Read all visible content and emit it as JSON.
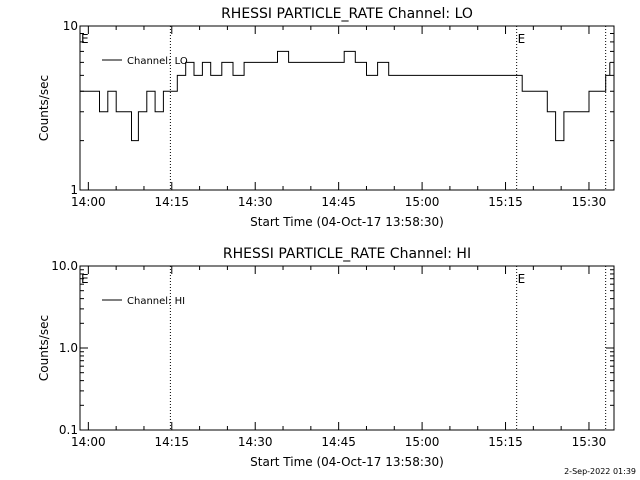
{
  "chart_data": [
    {
      "type": "line",
      "title": "RHESSI PARTICLE_RATE Channel: LO",
      "xlabel": "Start Time (04-Oct-17 13:58:30)",
      "ylabel": "Counts/sec",
      "yscale": "log",
      "ylim": [
        1,
        10
      ],
      "xlim": [
        "13:58:30",
        "15:34:30"
      ],
      "x_ticks": [
        "14:00",
        "14:15",
        "14:30",
        "14:45",
        "15:00",
        "15:15",
        "15:30"
      ],
      "y_ticks": [
        "1",
        "10"
      ],
      "legend": {
        "position": "top-left",
        "label": "Channel: LO"
      },
      "markers": [
        {
          "label": "E",
          "time": "13:58:30"
        },
        {
          "label": "",
          "time": "14:14:45"
        },
        {
          "label": "E",
          "time": "15:17:00"
        },
        {
          "label": "",
          "time": "15:33:00"
        }
      ],
      "series": [
        {
          "name": "Channel: LO",
          "times": [
            "13:58:30",
            "14:01:00",
            "14:02:00",
            "14:03:30",
            "14:05:00",
            "14:07:00",
            "14:07:45",
            "14:09:00",
            "14:10:30",
            "14:12:00",
            "14:13:30",
            "14:14:45",
            "14:16:00",
            "14:17:30",
            "14:19:00",
            "14:20:30",
            "14:22:00",
            "14:24:00",
            "14:26:00",
            "14:28:00",
            "14:30:00",
            "14:32:00",
            "14:34:00",
            "14:36:00",
            "14:38:00",
            "14:40:00",
            "14:42:00",
            "14:44:00",
            "14:46:00",
            "14:48:00",
            "14:50:00",
            "14:52:00",
            "14:54:00",
            "14:56:00",
            "14:58:00",
            "15:00:00",
            "15:02:00",
            "15:04:00",
            "15:06:00",
            "15:08:00",
            "15:10:00",
            "15:12:00",
            "15:14:00",
            "15:16:00",
            "15:18:00",
            "15:19:30",
            "15:21:00",
            "15:22:30",
            "15:24:00",
            "15:25:30",
            "15:27:00",
            "15:28:30",
            "15:30:00",
            "15:31:30",
            "15:33:00",
            "15:33:45"
          ],
          "values": [
            4,
            4,
            3,
            4,
            3,
            3,
            2,
            3,
            4,
            3,
            4,
            4,
            5,
            6,
            5,
            6,
            5,
            6,
            5,
            6,
            6,
            6,
            7,
            6,
            6,
            6,
            6,
            6,
            7,
            6,
            5,
            6,
            5,
            5,
            5,
            5,
            5,
            5,
            5,
            5,
            5,
            5,
            5,
            5,
            4,
            4,
            4,
            3,
            2,
            3,
            3,
            3,
            4,
            4,
            5,
            6
          ]
        }
      ]
    },
    {
      "type": "line",
      "title": "RHESSI PARTICLE_RATE Channel: HI",
      "xlabel": "Start Time (04-Oct-17 13:58:30)",
      "ylabel": "Counts/sec",
      "yscale": "log",
      "ylim": [
        0.1,
        10
      ],
      "xlim": [
        "13:58:30",
        "15:34:30"
      ],
      "x_ticks": [
        "14:00",
        "14:15",
        "14:30",
        "14:45",
        "15:00",
        "15:15",
        "15:30"
      ],
      "y_ticks": [
        "0.1",
        "1.0",
        "10.0"
      ],
      "legend": {
        "position": "top-left",
        "label": "Channel: HI"
      },
      "markers": [
        {
          "label": "E",
          "time": "13:58:30"
        },
        {
          "label": "",
          "time": "14:14:45"
        },
        {
          "label": "E",
          "time": "15:17:00"
        },
        {
          "label": "",
          "time": "15:33:00"
        }
      ],
      "series": [
        {
          "name": "Channel: HI",
          "times": [],
          "values": []
        }
      ]
    }
  ],
  "footer": {
    "timestamp": "2-Sep-2022 01:39"
  }
}
